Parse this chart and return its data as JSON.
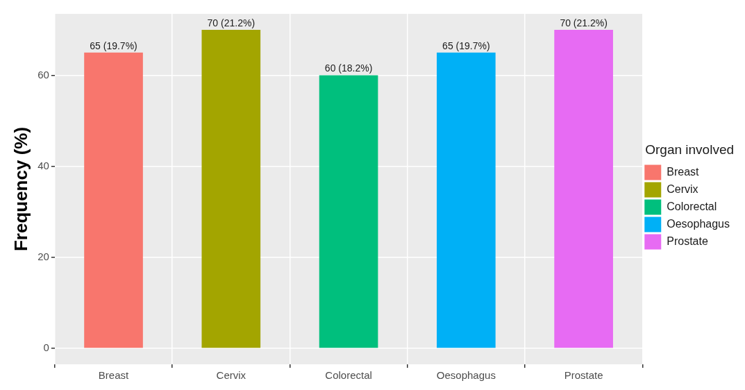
{
  "chart_data": {
    "type": "bar",
    "ylabel": "Frequency (%)",
    "legend_title": "Organ involved",
    "categories": [
      "Breast",
      "Cervix",
      "Colorectal",
      "Oesophagus",
      "Prostate"
    ],
    "series": [
      {
        "name": "Breast",
        "color": "#f8766d",
        "values": [
          65,
          null,
          null,
          null,
          null
        ],
        "value_labels": [
          "65 (19.7%)",
          null,
          null,
          null,
          null
        ]
      },
      {
        "name": "Cervix",
        "color": "#a3a500",
        "values": [
          null,
          70,
          null,
          null,
          null
        ],
        "value_labels": [
          null,
          "70 (21.2%)",
          null,
          null,
          null
        ]
      },
      {
        "name": "Colorectal",
        "color": "#00bf7d",
        "values": [
          null,
          null,
          60,
          null,
          null
        ],
        "value_labels": [
          null,
          null,
          "60 (18.2%)",
          null,
          null
        ]
      },
      {
        "name": "Oesophagus",
        "color": "#00b0f6",
        "values": [
          null,
          null,
          null,
          65,
          null
        ],
        "value_labels": [
          null,
          null,
          null,
          "65 (19.7%)",
          null
        ]
      },
      {
        "name": "Prostate",
        "color": "#e76bf3",
        "values": [
          null,
          null,
          null,
          null,
          70
        ],
        "value_labels": [
          null,
          null,
          null,
          null,
          "70 (21.2%)"
        ]
      }
    ],
    "ylim": [
      -3.5,
      73.5
    ],
    "yticks": [
      0,
      20,
      40,
      60
    ],
    "grid": true,
    "legend": "right"
  }
}
